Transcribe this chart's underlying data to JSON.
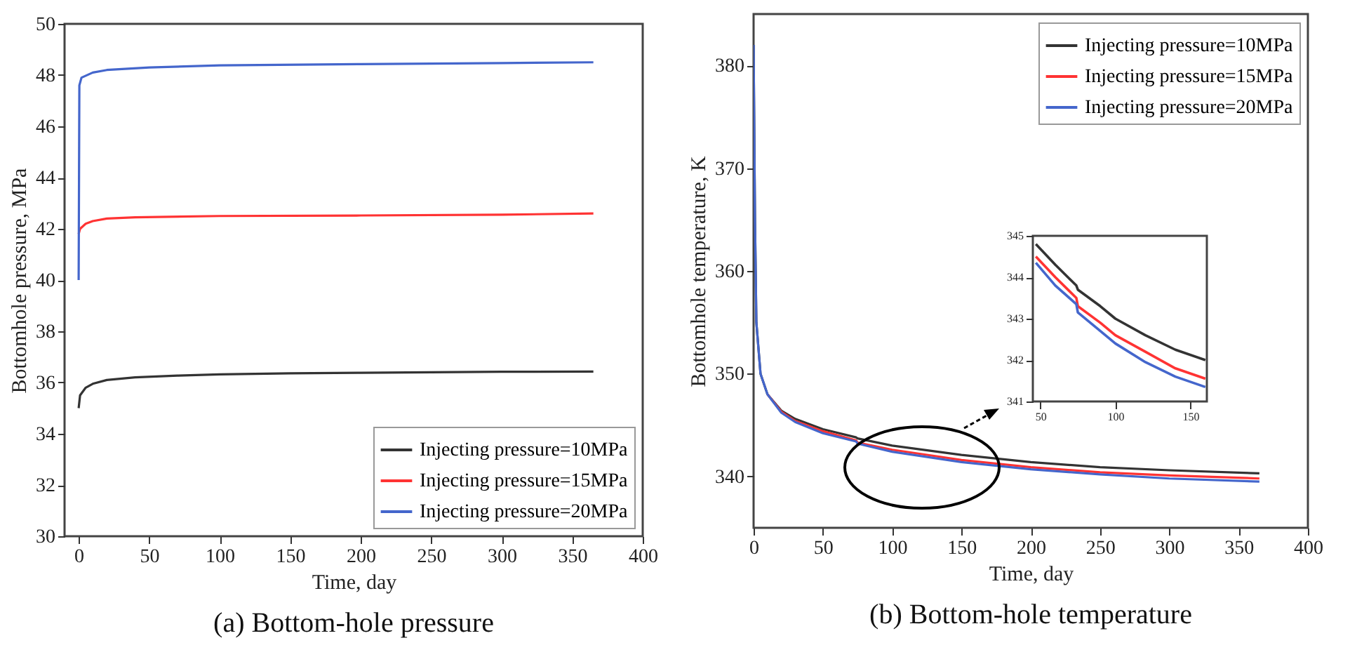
{
  "chart_data": [
    {
      "type": "line",
      "title": "(a) Bottom-hole pressure",
      "xlabel": "Time, day",
      "ylabel": "Bottomhole pressure, MPa",
      "xlim": [
        -10,
        400
      ],
      "ylim": [
        30,
        50
      ],
      "xticks": [
        0,
        50,
        100,
        150,
        200,
        250,
        300,
        350,
        400
      ],
      "yticks": [
        30,
        32,
        34,
        36,
        38,
        40,
        42,
        44,
        46,
        48,
        50
      ],
      "legend": "bottom right",
      "series": [
        {
          "name": "Injecting pressure=10MPa",
          "color": "#333333",
          "x": [
            0,
            1,
            5,
            10,
            20,
            40,
            70,
            100,
            150,
            200,
            250,
            300,
            365
          ],
          "values": [
            35.0,
            35.5,
            35.8,
            35.95,
            36.1,
            36.2,
            36.27,
            36.32,
            36.36,
            36.38,
            36.4,
            36.42,
            36.43
          ]
        },
        {
          "name": "Injecting pressure=15MPa",
          "color": "#ff3333",
          "x": [
            0,
            1,
            5,
            10,
            20,
            40,
            100,
            200,
            300,
            365
          ],
          "values": [
            41.8,
            42.0,
            42.2,
            42.3,
            42.4,
            42.45,
            42.5,
            42.52,
            42.55,
            42.6
          ]
        },
        {
          "name": "Injecting pressure=20MPa",
          "color": "#4466cc",
          "x": [
            0,
            0.5,
            2,
            10,
            20,
            50,
            100,
            200,
            300,
            365
          ],
          "values": [
            40.0,
            47.6,
            47.9,
            48.1,
            48.2,
            48.3,
            48.38,
            48.43,
            48.47,
            48.5
          ]
        }
      ]
    },
    {
      "type": "line",
      "title": "(b) Bottom-hole temperature",
      "xlabel": "Time, day",
      "ylabel": "Bottomhole temperature, K",
      "xlim": [
        0,
        400
      ],
      "ylim": [
        335,
        385
      ],
      "xticks": [
        0,
        50,
        100,
        150,
        200,
        250,
        300,
        350,
        400
      ],
      "yticks": [
        340,
        350,
        360,
        370,
        380
      ],
      "legend": "top right",
      "series": [
        {
          "name": "Injecting pressure=10MPa",
          "color": "#333333",
          "x": [
            0,
            1,
            2,
            5,
            10,
            20,
            30,
            50,
            74,
            75,
            100,
            150,
            200,
            250,
            300,
            365
          ],
          "values": [
            382,
            365,
            355,
            350,
            348,
            346.4,
            345.6,
            344.6,
            343.8,
            343.7,
            343.0,
            342.1,
            341.4,
            340.9,
            340.6,
            340.3
          ]
        },
        {
          "name": "Injecting pressure=15MPa",
          "color": "#ff3333",
          "x": [
            10,
            20,
            30,
            50,
            74,
            75,
            100,
            150,
            200,
            250,
            300,
            365
          ],
          "values": [
            348,
            346.3,
            345.4,
            344.4,
            343.5,
            343.3,
            342.6,
            341.6,
            340.9,
            340.4,
            340.1,
            339.8
          ]
        },
        {
          "name": "Injecting pressure=20MPa",
          "color": "#4466cc",
          "x": [
            0,
            1,
            2,
            5,
            10,
            20,
            30,
            50,
            74,
            75,
            100,
            150,
            200,
            250,
            300,
            365
          ],
          "values": [
            382,
            365,
            355,
            350,
            348,
            346.2,
            345.3,
            344.2,
            343.4,
            343.2,
            342.4,
            341.4,
            340.7,
            340.2,
            339.8,
            339.5
          ]
        }
      ]
    },
    {
      "type": "line",
      "xlim": [
        45,
        161
      ],
      "ylim": [
        341,
        345
      ],
      "xticks": [
        50,
        100,
        150
      ],
      "yticks": [
        341,
        342,
        343,
        344,
        345
      ],
      "series": [
        {
          "color": "#333333",
          "x": [
            47,
            60,
            74,
            75,
            90,
            100,
            120,
            140,
            160
          ],
          "values": [
            344.8,
            344.3,
            343.8,
            343.7,
            343.3,
            343.0,
            342.6,
            342.25,
            342.0
          ]
        },
        {
          "color": "#ff3333",
          "x": [
            47,
            60,
            74,
            75,
            90,
            100,
            120,
            140,
            160
          ],
          "values": [
            344.5,
            344.0,
            343.5,
            343.3,
            342.9,
            342.6,
            342.2,
            341.8,
            341.55
          ]
        },
        {
          "color": "#4466cc",
          "x": [
            47,
            60,
            74,
            75,
            90,
            100,
            120,
            140,
            160
          ],
          "values": [
            344.35,
            343.8,
            343.35,
            343.15,
            342.7,
            342.4,
            341.95,
            341.6,
            341.35
          ]
        }
      ]
    }
  ]
}
